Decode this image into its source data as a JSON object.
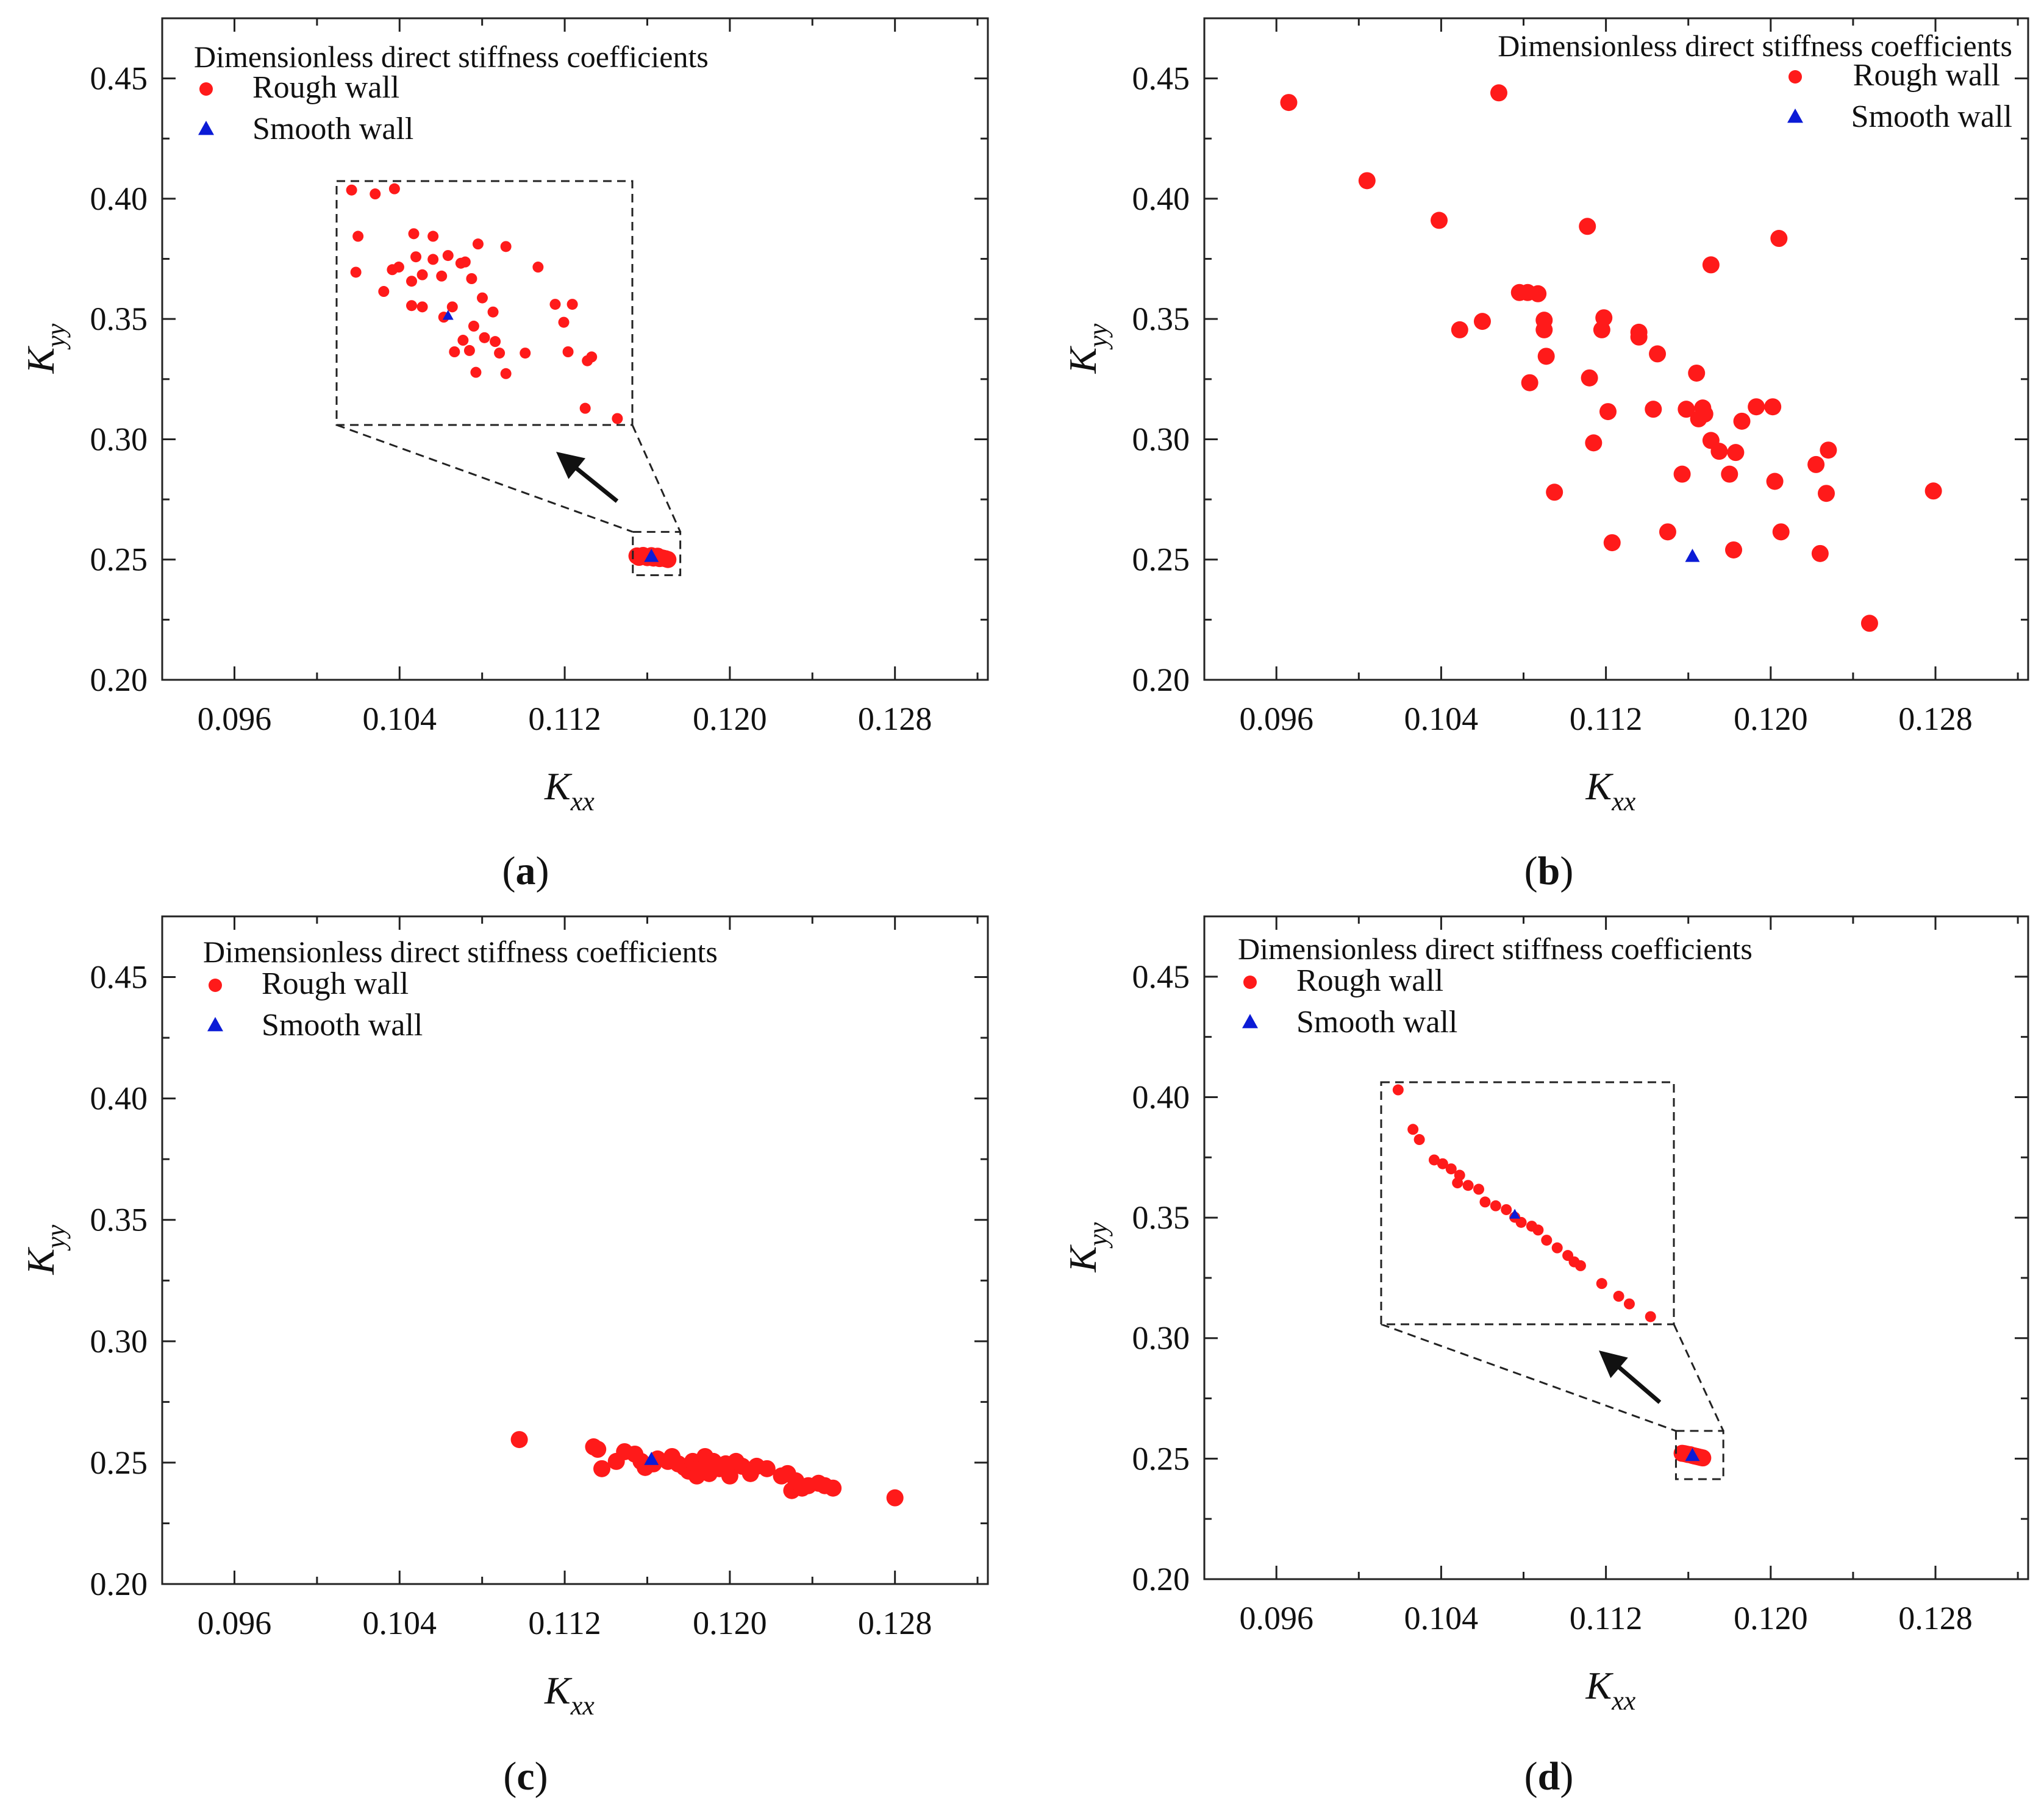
{
  "figure": {
    "colors": {
      "rough": "#ff1a1a",
      "smooth": "#0b1bd6",
      "axis": "#222222"
    },
    "x_axis_label": {
      "main": "K",
      "sub": "xx"
    },
    "y_axis_label": {
      "main": "K",
      "sub": "yy"
    },
    "x_ticks": [
      "0.096",
      "0.104",
      "0.112",
      "0.120",
      "0.128"
    ],
    "y_ticks": [
      "0.20",
      "0.25",
      "0.30",
      "0.35",
      "0.40",
      "0.45"
    ]
  },
  "chart_data": [
    {
      "panel": "a",
      "type": "scatter",
      "caption": {
        "open": "(",
        "letter": "a",
        "close": ")"
      },
      "legend": {
        "title": "Dimensionless direct stiffness coefficients",
        "rough_label": "Rough wall",
        "smooth_label": "Smooth wall",
        "placement": "top-left"
      },
      "xlabel": "Kxx",
      "ylabel": "Kyy",
      "xlim": [
        0.0925,
        0.1325
      ],
      "ylim": [
        0.2,
        0.475
      ],
      "xticks": [
        0.096,
        0.104,
        0.112,
        0.12,
        0.128
      ],
      "yticks": [
        0.2,
        0.25,
        0.3,
        0.35,
        0.4,
        0.45
      ],
      "series": [
        {
          "name": "Rough wall",
          "marker": "circle",
          "points": [
            [
              0.1155,
              0.2515
            ],
            [
              0.1157,
              0.2513
            ],
            [
              0.1159,
              0.2512
            ],
            [
              0.1161,
              0.2511
            ],
            [
              0.1162,
              0.251
            ],
            [
              0.1164,
              0.2509
            ],
            [
              0.1165,
              0.2508
            ],
            [
              0.1167,
              0.2507
            ],
            [
              0.1168,
              0.2505
            ],
            [
              0.1156,
              0.2509
            ],
            [
              0.116,
              0.2508
            ],
            [
              0.1163,
              0.2506
            ],
            [
              0.1166,
              0.2504
            ],
            [
              0.1169,
              0.2503
            ],
            [
              0.1158,
              0.2517
            ],
            [
              0.1162,
              0.2516
            ],
            [
              0.1165,
              0.2514
            ],
            [
              0.117,
              0.25
            ]
          ]
        },
        {
          "name": "Smooth wall",
          "marker": "triangle",
          "points": [
            [
              0.1162,
              0.2512
            ]
          ]
        }
      ],
      "inset": {
        "source_xlim": [
          0.1153,
          0.1176
        ],
        "source_ylim": [
          0.2435,
          0.2615
        ],
        "series": [
          {
            "name": "Rough wall",
            "marker": "circle",
            "points": [
              [
                0.1032,
                0.4
              ],
              [
                0.1043,
                0.3985
              ],
              [
                0.1052,
                0.4005
              ],
              [
                0.1035,
                0.382
              ],
              [
                0.1034,
                0.368
              ],
              [
                0.1047,
                0.3605
              ],
              [
                0.1051,
                0.369
              ],
              [
                0.1054,
                0.37
              ],
              [
                0.1061,
                0.383
              ],
              [
                0.107,
                0.382
              ],
              [
                0.1062,
                0.374
              ],
              [
                0.107,
                0.373
              ],
              [
                0.1077,
                0.3745
              ],
              [
                0.1085,
                0.372
              ],
              [
                0.1091,
                0.379
              ],
              [
                0.1065,
                0.367
              ],
              [
                0.106,
                0.3645
              ],
              [
                0.1074,
                0.3665
              ],
              [
                0.1083,
                0.3715
              ],
              [
                0.1088,
                0.3655
              ],
              [
                0.106,
                0.355
              ],
              [
                0.1065,
                0.3545
              ],
              [
                0.1075,
                0.3505
              ],
              [
                0.1079,
                0.3545
              ],
              [
                0.1093,
                0.358
              ],
              [
                0.1098,
                0.3525
              ],
              [
                0.1104,
                0.378
              ],
              [
                0.1119,
                0.37
              ],
              [
                0.1127,
                0.3555
              ],
              [
                0.1135,
                0.3555
              ],
              [
                0.1131,
                0.3485
              ],
              [
                0.1089,
                0.347
              ],
              [
                0.1094,
                0.3425
              ],
              [
                0.1084,
                0.3415
              ],
              [
                0.108,
                0.337
              ],
              [
                0.1087,
                0.3375
              ],
              [
                0.109,
                0.329
              ],
              [
                0.1099,
                0.341
              ],
              [
                0.1101,
                0.3365
              ],
              [
                0.1104,
                0.3285
              ],
              [
                0.1113,
                0.3365
              ],
              [
                0.1133,
                0.337
              ],
              [
                0.1142,
                0.3335
              ],
              [
                0.1144,
                0.335
              ],
              [
                0.1141,
                0.315
              ],
              [
                0.1156,
                0.311
              ]
            ]
          },
          {
            "name": "Smooth wall",
            "marker": "triangle",
            "points": [
              [
                0.1077,
                0.351
              ]
            ]
          }
        ]
      }
    },
    {
      "panel": "b",
      "type": "scatter",
      "caption": {
        "open": "(",
        "letter": "b",
        "close": ")"
      },
      "legend": {
        "title": "Dimensionless direct stiffness coefficients",
        "rough_label": "Rough wall",
        "smooth_label": "Smooth wall",
        "placement": "top-right"
      },
      "xlabel": "Kxx",
      "ylabel": "Kyy",
      "xlim": [
        0.0925,
        0.1325
      ],
      "ylim": [
        0.2,
        0.475
      ],
      "xticks": [
        0.096,
        0.104,
        0.112,
        0.12,
        0.128
      ],
      "yticks": [
        0.2,
        0.25,
        0.3,
        0.35,
        0.4,
        0.45
      ],
      "series": [
        {
          "name": "Rough wall",
          "marker": "circle",
          "points": [
            [
              0.0966,
              0.44
            ],
            [
              0.1004,
              0.4075
            ],
            [
              0.1039,
              0.391
            ],
            [
              0.1068,
              0.444
            ],
            [
              0.1049,
              0.3455
            ],
            [
              0.106,
              0.349
            ],
            [
              0.1078,
              0.361
            ],
            [
              0.1082,
              0.361
            ],
            [
              0.1087,
              0.3605
            ],
            [
              0.109,
              0.3495
            ],
            [
              0.109,
              0.3455
            ],
            [
              0.1091,
              0.3345
            ],
            [
              0.1083,
              0.3235
            ],
            [
              0.1095,
              0.278
            ],
            [
              0.1111,
              0.3885
            ],
            [
              0.1112,
              0.3255
            ],
            [
              0.1114,
              0.2985
            ],
            [
              0.1119,
              0.3505
            ],
            [
              0.1118,
              0.3455
            ],
            [
              0.1121,
              0.3115
            ],
            [
              0.1123,
              0.257
            ],
            [
              0.1136,
              0.3445
            ],
            [
              0.1136,
              0.3425
            ],
            [
              0.1143,
              0.3125
            ],
            [
              0.1145,
              0.3355
            ],
            [
              0.115,
              0.2615
            ],
            [
              0.1157,
              0.2855
            ],
            [
              0.1159,
              0.3125
            ],
            [
              0.1167,
              0.313
            ],
            [
              0.1164,
              0.3275
            ],
            [
              0.1168,
              0.3105
            ],
            [
              0.1165,
              0.3085
            ],
            [
              0.1171,
              0.2995
            ],
            [
              0.1175,
              0.295
            ],
            [
              0.1171,
              0.3725
            ],
            [
              0.118,
              0.2855
            ],
            [
              0.1183,
              0.2945
            ],
            [
              0.1182,
              0.254
            ],
            [
              0.1186,
              0.3075
            ],
            [
              0.1193,
              0.3135
            ],
            [
              0.1201,
              0.3135
            ],
            [
              0.1202,
              0.2825
            ],
            [
              0.1204,
              0.3835
            ],
            [
              0.1205,
              0.2615
            ],
            [
              0.1222,
              0.2895
            ],
            [
              0.1224,
              0.2525
            ],
            [
              0.1227,
              0.2775
            ],
            [
              0.1228,
              0.2955
            ],
            [
              0.1248,
              0.2235
            ],
            [
              0.1279,
              0.2785
            ]
          ]
        },
        {
          "name": "Smooth wall",
          "marker": "triangle",
          "points": [
            [
              0.1162,
              0.2512
            ]
          ]
        }
      ]
    },
    {
      "panel": "c",
      "type": "scatter",
      "caption": {
        "open": "(",
        "letter": "c",
        "close": ")"
      },
      "legend": {
        "title": "Dimensionless direct stiffness coefficients",
        "rough_label": "Rough wall",
        "smooth_label": "Smooth wall",
        "placement": "top-left"
      },
      "xlabel": "Kxx",
      "ylabel": "Kyy",
      "xlim": [
        0.0925,
        0.1325
      ],
      "ylim": [
        0.2,
        0.475
      ],
      "xticks": [
        0.096,
        0.104,
        0.112,
        0.12,
        0.128
      ],
      "yticks": [
        0.2,
        0.25,
        0.3,
        0.35,
        0.4,
        0.45
      ],
      "series": [
        {
          "name": "Rough wall",
          "marker": "circle",
          "points": [
            [
              0.1098,
              0.2595
            ],
            [
              0.1134,
              0.2565
            ],
            [
              0.1136,
              0.2555
            ],
            [
              0.1138,
              0.2475
            ],
            [
              0.1145,
              0.2505
            ],
            [
              0.1149,
              0.2545
            ],
            [
              0.1154,
              0.2535
            ],
            [
              0.1157,
              0.2505
            ],
            [
              0.1159,
              0.248
            ],
            [
              0.1163,
              0.2495
            ],
            [
              0.1165,
              0.2515
            ],
            [
              0.117,
              0.2505
            ],
            [
              0.1172,
              0.2525
            ],
            [
              0.1175,
              0.2495
            ],
            [
              0.1178,
              0.248
            ],
            [
              0.118,
              0.2465
            ],
            [
              0.1182,
              0.2505
            ],
            [
              0.1184,
              0.2445
            ],
            [
              0.1186,
              0.2485
            ],
            [
              0.1188,
              0.2525
            ],
            [
              0.119,
              0.2455
            ],
            [
              0.1192,
              0.2505
            ],
            [
              0.1195,
              0.2475
            ],
            [
              0.1198,
              0.2495
            ],
            [
              0.12,
              0.2445
            ],
            [
              0.1203,
              0.2505
            ],
            [
              0.1206,
              0.2485
            ],
            [
              0.121,
              0.2455
            ],
            [
              0.1213,
              0.2485
            ],
            [
              0.1218,
              0.2475
            ],
            [
              0.1225,
              0.2445
            ],
            [
              0.1228,
              0.2455
            ],
            [
              0.123,
              0.2385
            ],
            [
              0.1232,
              0.2425
            ],
            [
              0.1235,
              0.2395
            ],
            [
              0.1238,
              0.2405
            ],
            [
              0.1243,
              0.2415
            ],
            [
              0.1246,
              0.2405
            ],
            [
              0.125,
              0.2395
            ],
            [
              0.128,
              0.2355
            ]
          ]
        },
        {
          "name": "Smooth wall",
          "marker": "triangle",
          "points": [
            [
              0.1162,
              0.2512
            ]
          ]
        }
      ]
    },
    {
      "panel": "d",
      "type": "scatter",
      "caption": {
        "open": "(",
        "letter": "d",
        "close": ")"
      },
      "legend": {
        "title": "Dimensionless direct stiffness coefficients",
        "rough_label": "Rough wall",
        "smooth_label": "Smooth wall",
        "placement": "top-left"
      },
      "xlabel": "Kxx",
      "ylabel": "Kyy",
      "xlim": [
        0.0925,
        0.1325
      ],
      "ylim": [
        0.2,
        0.475
      ],
      "xticks": [
        0.096,
        0.104,
        0.112,
        0.12,
        0.128
      ],
      "yticks": [
        0.2,
        0.25,
        0.3,
        0.35,
        0.4,
        0.45
      ],
      "series": [
        {
          "name": "Rough wall",
          "marker": "circle",
          "points": [
            [
              0.1157,
              0.2522
            ],
            [
              0.1159,
              0.2519
            ],
            [
              0.1161,
              0.2516
            ],
            [
              0.1162,
              0.2513
            ],
            [
              0.1163,
              0.2511
            ],
            [
              0.1164,
              0.2509
            ],
            [
              0.1165,
              0.2507
            ],
            [
              0.1166,
              0.2505
            ],
            [
              0.1167,
              0.2503
            ],
            [
              0.1158,
              0.2521
            ],
            [
              0.116,
              0.2517
            ]
          ]
        },
        {
          "name": "Smooth wall",
          "marker": "triangle",
          "points": [
            [
              0.1162,
              0.2512
            ]
          ]
        }
      ],
      "inset": {
        "source_xlim": [
          0.1154,
          0.1177
        ],
        "source_ylim": [
          0.2415,
          0.2615
        ],
        "series": [
          {
            "name": "Rough wall",
            "marker": "circle",
            "points": [
              [
                0.1033,
                0.4005
              ],
              [
                0.104,
                0.385
              ],
              [
                0.1043,
                0.381
              ],
              [
                0.105,
                0.373
              ],
              [
                0.1054,
                0.3715
              ],
              [
                0.1058,
                0.3695
              ],
              [
                0.1062,
                0.367
              ],
              [
                0.1061,
                0.364
              ],
              [
                0.1066,
                0.363
              ],
              [
                0.1071,
                0.3615
              ],
              [
                0.1074,
                0.3565
              ],
              [
                0.1079,
                0.355
              ],
              [
                0.1084,
                0.3535
              ],
              [
                0.1088,
                0.3505
              ],
              [
                0.1091,
                0.3485
              ],
              [
                0.1096,
                0.347
              ],
              [
                0.1099,
                0.3455
              ],
              [
                0.1103,
                0.3415
              ],
              [
                0.1108,
                0.3385
              ],
              [
                0.1113,
                0.3355
              ],
              [
                0.1116,
                0.333
              ],
              [
                0.1119,
                0.3315
              ],
              [
                0.1129,
                0.3245
              ],
              [
                0.1137,
                0.3195
              ],
              [
                0.1142,
                0.3165
              ],
              [
                0.1152,
                0.3115
              ]
            ]
          },
          {
            "name": "Smooth wall",
            "marker": "triangle",
            "points": [
              [
                0.1088,
                0.3515
              ]
            ]
          }
        ]
      }
    }
  ]
}
